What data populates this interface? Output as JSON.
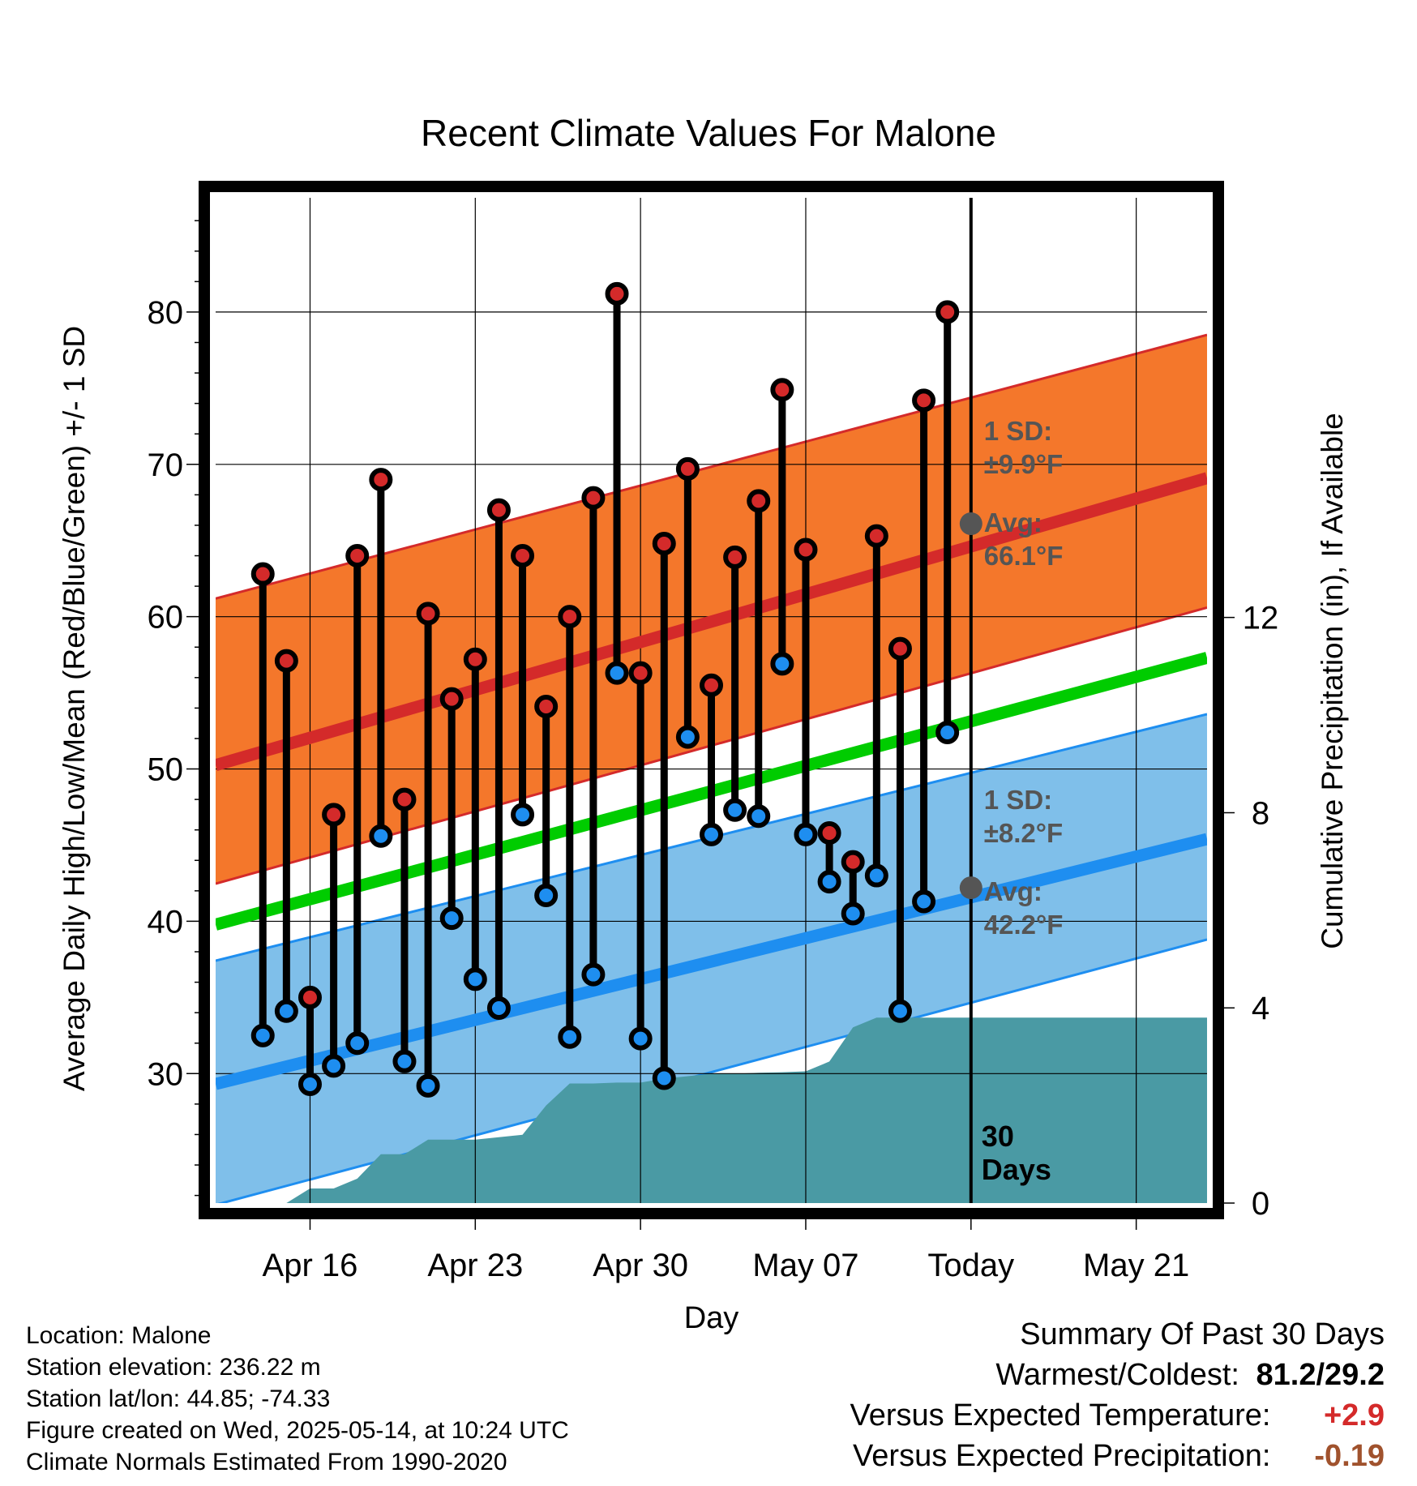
{
  "chart_data": {
    "type": "line",
    "title": "Recent Climate Values For Malone",
    "xlabel": "Day",
    "ylabel": "Average Daily High/Low/Mean (Red/Blue/Green) +/- 1 SD",
    "y2label": "Cumulative Precipitation (in), If Available",
    "ylim": [
      21.5,
      87.5
    ],
    "y_ticks": [
      30,
      40,
      50,
      60,
      70,
      80
    ],
    "y2lim": [
      0,
      20.6
    ],
    "y2_ticks": [
      0,
      4,
      8,
      12
    ],
    "xlim": [
      "2025-04-12",
      "2025-05-24"
    ],
    "x_tick_dates": [
      "2025-04-16",
      "2025-04-23",
      "2025-04-30",
      "2025-05-07",
      "2025-05-14",
      "2025-05-21"
    ],
    "x_tick_labels": [
      "Apr 16",
      "Apr 23",
      "Apr 30",
      "May 07",
      "Today",
      "May 21"
    ],
    "grid": true,
    "today": "2025-05-14",
    "today_marker_label": "30 Days",
    "colors": {
      "high": "#d42a2a",
      "low": "#1e8ef0",
      "mean": "#00cc00",
      "high_band": "#f4772b",
      "low_band": "#7fbfea",
      "precip": "#4a9aa4",
      "avg_dot": "#555555",
      "annotation": "#555555"
    },
    "normals": {
      "dates": [
        "2025-04-13",
        "2025-05-24"
      ],
      "high": [
        50.7,
        69.1
      ],
      "high_upper": [
        61.6,
        78.5
      ],
      "high_lower": [
        42.9,
        60.6
      ],
      "low": [
        29.7,
        45.4
      ],
      "low_upper": [
        37.8,
        53.6
      ],
      "low_lower": [
        21.8,
        38.8
      ],
      "mean": [
        40.2,
        57.3
      ]
    },
    "annotations": [
      {
        "label": "1 SD:",
        "value": "±9.9°F",
        "series": "high"
      },
      {
        "label": "Avg:",
        "value": "66.1°F",
        "series": "high",
        "date": "2025-05-14",
        "y": 66.1
      },
      {
        "label": "1 SD:",
        "value": "±8.2°F",
        "series": "low"
      },
      {
        "label": "Avg:",
        "value": "42.2°F",
        "series": "low",
        "date": "2025-05-14",
        "y": 42.2
      }
    ],
    "observations": {
      "dates": [
        "2025-04-14",
        "2025-04-15",
        "2025-04-16",
        "2025-04-17",
        "2025-04-18",
        "2025-04-19",
        "2025-04-20",
        "2025-04-21",
        "2025-04-22",
        "2025-04-23",
        "2025-04-24",
        "2025-04-25",
        "2025-04-26",
        "2025-04-27",
        "2025-04-28",
        "2025-04-29",
        "2025-04-30",
        "2025-05-01",
        "2025-05-02",
        "2025-05-03",
        "2025-05-04",
        "2025-05-05",
        "2025-05-06",
        "2025-05-07",
        "2025-05-08",
        "2025-05-09",
        "2025-05-10",
        "2025-05-11",
        "2025-05-12",
        "2025-05-13"
      ],
      "high": [
        62.8,
        57.1,
        35.0,
        47.0,
        64.0,
        69.0,
        48.0,
        60.2,
        54.6,
        57.2,
        67.0,
        64.0,
        54.1,
        60.0,
        67.8,
        81.2,
        56.3,
        64.8,
        69.7,
        55.5,
        63.9,
        67.6,
        74.9,
        64.4,
        45.8,
        43.9,
        65.3,
        57.9,
        74.2,
        80.0
      ],
      "low": [
        32.5,
        34.1,
        29.3,
        30.5,
        32.0,
        45.6,
        30.8,
        29.2,
        40.2,
        36.2,
        34.3,
        47.0,
        41.7,
        32.4,
        36.5,
        56.3,
        32.3,
        29.7,
        52.1,
        45.7,
        47.3,
        46.9,
        56.9,
        45.7,
        42.6,
        40.5,
        43.0,
        34.1,
        41.3,
        52.4
      ]
    },
    "precipitation": {
      "dates": [
        "2025-04-14",
        "2025-04-15",
        "2025-04-16",
        "2025-04-17",
        "2025-04-18",
        "2025-04-19",
        "2025-04-20",
        "2025-04-21",
        "2025-04-22",
        "2025-04-23",
        "2025-04-24",
        "2025-04-25",
        "2025-04-26",
        "2025-04-27",
        "2025-04-28",
        "2025-04-29",
        "2025-04-30",
        "2025-05-01",
        "2025-05-02",
        "2025-05-03",
        "2025-05-04",
        "2025-05-05",
        "2025-05-06",
        "2025-05-07",
        "2025-05-08",
        "2025-05-09",
        "2025-05-10",
        "2025-05-11",
        "2025-05-12",
        "2025-05-13",
        "2025-05-14",
        "2025-05-24"
      ],
      "cumulative": [
        0.0,
        0.0,
        0.3,
        0.3,
        0.5,
        1.0,
        1.0,
        1.3,
        1.3,
        1.3,
        1.35,
        1.4,
        2.0,
        2.45,
        2.45,
        2.47,
        2.47,
        2.55,
        2.6,
        2.65,
        2.65,
        2.67,
        2.68,
        2.7,
        2.9,
        3.6,
        3.8,
        3.8,
        3.8,
        3.8,
        3.8,
        3.8
      ]
    }
  },
  "info": {
    "location": "Location: Malone",
    "elevation": "Station elevation: 236.22 m",
    "latlon": "Station lat/lon: 44.85; -74.33",
    "created": "Figure created on Wed, 2025-05-14, at 10:24 UTC",
    "normals_note": "Climate Normals Estimated From 1990-2020"
  },
  "summary": {
    "title": "Summary Of Past 30 Days",
    "warm_cold_label": "Warmest/Coldest:",
    "warm_cold_value": "81.2/29.2",
    "temp_label": "Versus Expected Temperature:",
    "temp_value": "+2.9",
    "temp_color": "#d42a2a",
    "precip_label": "Versus Expected Precipitation:",
    "precip_value": "-0.19",
    "precip_color": "#a0522d"
  }
}
